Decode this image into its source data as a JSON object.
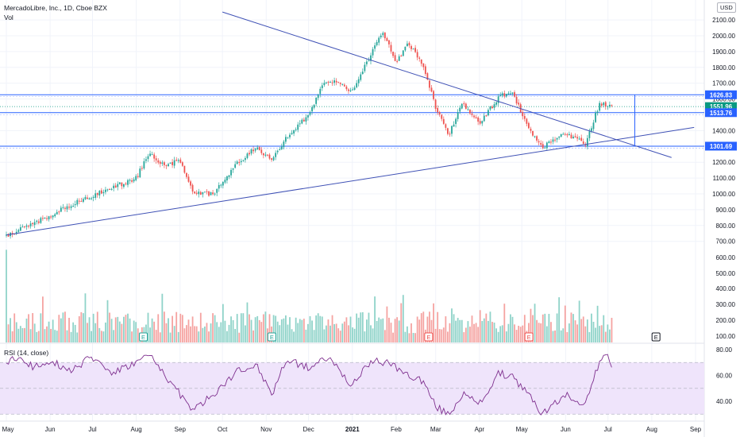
{
  "header": {
    "title": "MercadoLibre, Inc., 1D, Cboe BZX",
    "volume_label": "Vol",
    "currency": "USD"
  },
  "rsi_pane": {
    "label": "RSI (14, close)",
    "ticks": [
      "80.00",
      "60.00",
      "40.00"
    ]
  },
  "price_axis": {
    "ticks": [
      "2100.00",
      "2000.00",
      "1900.00",
      "1800.00",
      "1700.00",
      "1600.00",
      "1400.00",
      "1300.00",
      "1200.00",
      "1100.00",
      "1000.00",
      "900.00",
      "800.00",
      "700.00",
      "600.00",
      "500.00",
      "400.00",
      "300.00",
      "200.00",
      "100.00"
    ]
  },
  "price_labels": [
    {
      "value": "1626.83",
      "color": "#2962ff"
    },
    {
      "value": "1551.96",
      "color": "#089981"
    },
    {
      "value": "1513.76",
      "color": "#2962ff"
    },
    {
      "value": "1301.69",
      "color": "#2962ff"
    }
  ],
  "time_axis": {
    "ticks": [
      "May",
      "Jun",
      "Jul",
      "Aug",
      "Sep",
      "Oct",
      "Nov",
      "Dec",
      "2021",
      "Feb",
      "Mar",
      "Apr",
      "May",
      "Jun",
      "Jul",
      "Aug",
      "Sep"
    ]
  },
  "earnings_markers": [
    "E",
    "E",
    "E",
    "E",
    "E"
  ],
  "colors": {
    "up": "#26a69a",
    "down": "#ef5350",
    "trendline": "#3f51b5",
    "hline": "#2962ff",
    "rsi_line": "#7e2f8e",
    "rsi_band": "#efe4fb"
  },
  "chart_data": {
    "type": "candlestick",
    "title": "MercadoLibre, Inc., 1D, Cboe BZX",
    "y_range": [
      0,
      2150
    ],
    "price_path": [
      [
        "2020-05-01",
        735
      ],
      [
        "2020-05-15",
        790
      ],
      [
        "2020-06-01",
        860
      ],
      [
        "2020-06-15",
        930
      ],
      [
        "2020-07-01",
        990
      ],
      [
        "2020-07-15",
        1040
      ],
      [
        "2020-08-01",
        1100
      ],
      [
        "2020-08-10",
        1255
      ],
      [
        "2020-08-20",
        1180
      ],
      [
        "2020-09-01",
        1210
      ],
      [
        "2020-09-10",
        1005
      ],
      [
        "2020-09-25",
        1000
      ],
      [
        "2020-10-10",
        1180
      ],
      [
        "2020-10-25",
        1300
      ],
      [
        "2020-11-05",
        1210
      ],
      [
        "2020-11-15",
        1350
      ],
      [
        "2020-12-01",
        1500
      ],
      [
        "2020-12-10",
        1680
      ],
      [
        "2020-12-20",
        1720
      ],
      [
        "2021-01-01",
        1650
      ],
      [
        "2021-01-15",
        1900
      ],
      [
        "2021-01-22",
        2020
      ],
      [
        "2021-02-01",
        1840
      ],
      [
        "2021-02-10",
        1950
      ],
      [
        "2021-02-20",
        1820
      ],
      [
        "2021-03-01",
        1550
      ],
      [
        "2021-03-10",
        1370
      ],
      [
        "2021-03-20",
        1580
      ],
      [
        "2021-04-01",
        1440
      ],
      [
        "2021-04-15",
        1620
      ],
      [
        "2021-04-25",
        1630
      ],
      [
        "2021-05-05",
        1420
      ],
      [
        "2021-05-15",
        1290
      ],
      [
        "2021-06-01",
        1380
      ],
      [
        "2021-06-15",
        1320
      ],
      [
        "2021-06-25",
        1570
      ],
      [
        "2021-07-05",
        1552
      ]
    ],
    "horizontal_levels": [
      1626.83,
      1551.96,
      1513.76,
      1301.69
    ],
    "trendlines": [
      {
        "from": [
          "2020-05-01",
          740
        ],
        "to": [
          "2021-08-31",
          1420
        ]
      },
      {
        "from": [
          "2020-10-01",
          2150
        ],
        "to": [
          "2021-08-15",
          1230
        ]
      }
    ],
    "volume": {
      "label": "Vol",
      "y_range": [
        0,
        600
      ],
      "first_bar_value": 600
    },
    "rsi": {
      "name": "RSI (14, close)",
      "y_range": [
        25,
        82
      ],
      "band": [
        30,
        70
      ],
      "midline": 50,
      "path": [
        [
          "2020-05-01",
          70
        ],
        [
          "2020-05-10",
          74
        ],
        [
          "2020-05-20",
          66
        ],
        [
          "2020-06-01",
          72
        ],
        [
          "2020-06-15",
          64
        ],
        [
          "2020-07-01",
          74
        ],
        [
          "2020-07-15",
          62
        ],
        [
          "2020-08-01",
          70
        ],
        [
          "2020-08-10",
          76
        ],
        [
          "2020-08-25",
          55
        ],
        [
          "2020-09-10",
          33
        ],
        [
          "2020-09-25",
          45
        ],
        [
          "2020-10-10",
          62
        ],
        [
          "2020-10-25",
          68
        ],
        [
          "2020-11-05",
          45
        ],
        [
          "2020-11-15",
          72
        ],
        [
          "2020-12-01",
          66
        ],
        [
          "2020-12-15",
          74
        ],
        [
          "2021-01-01",
          52
        ],
        [
          "2021-01-15",
          72
        ],
        [
          "2021-01-25",
          70
        ],
        [
          "2021-02-10",
          60
        ],
        [
          "2021-02-20",
          56
        ],
        [
          "2021-03-01",
          36
        ],
        [
          "2021-03-10",
          30
        ],
        [
          "2021-03-20",
          45
        ],
        [
          "2021-04-01",
          38
        ],
        [
          "2021-04-15",
          62
        ],
        [
          "2021-04-25",
          58
        ],
        [
          "2021-05-10",
          40
        ],
        [
          "2021-05-15",
          30
        ],
        [
          "2021-06-01",
          45
        ],
        [
          "2021-06-15",
          38
        ],
        [
          "2021-06-25",
          70
        ],
        [
          "2021-07-01",
          76
        ],
        [
          "2021-07-05",
          64
        ]
      ]
    },
    "events": {
      "earnings": [
        "2020-08-06",
        "2020-11-05",
        "2021-02-24",
        "2021-05-06",
        "2021-08-04"
      ]
    }
  }
}
